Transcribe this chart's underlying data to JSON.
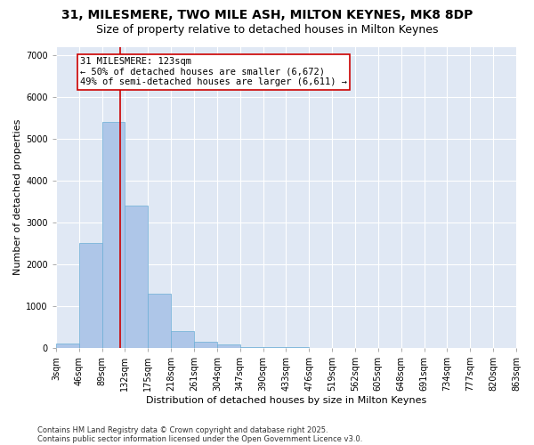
{
  "title_line1": "31, MILESMERE, TWO MILE ASH, MILTON KEYNES, MK8 8DP",
  "title_line2": "Size of property relative to detached houses in Milton Keynes",
  "xlabel": "Distribution of detached houses by size in Milton Keynes",
  "ylabel": "Number of detached properties",
  "bin_edges": [
    3,
    46,
    89,
    132,
    175,
    218,
    261,
    304,
    347,
    390,
    433,
    476,
    519,
    562,
    605,
    648,
    691,
    734,
    777,
    820,
    863
  ],
  "bin_labels": [
    "3sqm",
    "46sqm",
    "89sqm",
    "132sqm",
    "175sqm",
    "218sqm",
    "261sqm",
    "304sqm",
    "347sqm",
    "390sqm",
    "433sqm",
    "476sqm",
    "519sqm",
    "562sqm",
    "605sqm",
    "648sqm",
    "691sqm",
    "734sqm",
    "777sqm",
    "820sqm",
    "863sqm"
  ],
  "counts": [
    100,
    2500,
    5400,
    3400,
    1300,
    400,
    150,
    75,
    30,
    15,
    10,
    8,
    5,
    4,
    3,
    2,
    2,
    1,
    1,
    1
  ],
  "bar_color": "#aec6e8",
  "bar_edge_color": "#6baed6",
  "property_size": 123,
  "vline_color": "#cc0000",
  "annotation_line1": "31 MILESMERE: 123sqm",
  "annotation_line2": "← 50% of detached houses are smaller (6,672)",
  "annotation_line3": "49% of semi-detached houses are larger (6,611) →",
  "annotation_box_color": "#ffffff",
  "annotation_box_edge_color": "#cc0000",
  "ylim": [
    0,
    7200
  ],
  "yticks": [
    0,
    1000,
    2000,
    3000,
    4000,
    5000,
    6000,
    7000
  ],
  "background_color": "#e0e8f4",
  "grid_color": "#ffffff",
  "fig_bg_color": "#ffffff",
  "footer_line1": "Contains HM Land Registry data © Crown copyright and database right 2025.",
  "footer_line2": "Contains public sector information licensed under the Open Government Licence v3.0.",
  "title_fontsize": 10,
  "subtitle_fontsize": 9,
  "ylabel_fontsize": 8,
  "xlabel_fontsize": 8,
  "tick_fontsize": 7,
  "annotation_fontsize": 7.5,
  "footer_fontsize": 6
}
